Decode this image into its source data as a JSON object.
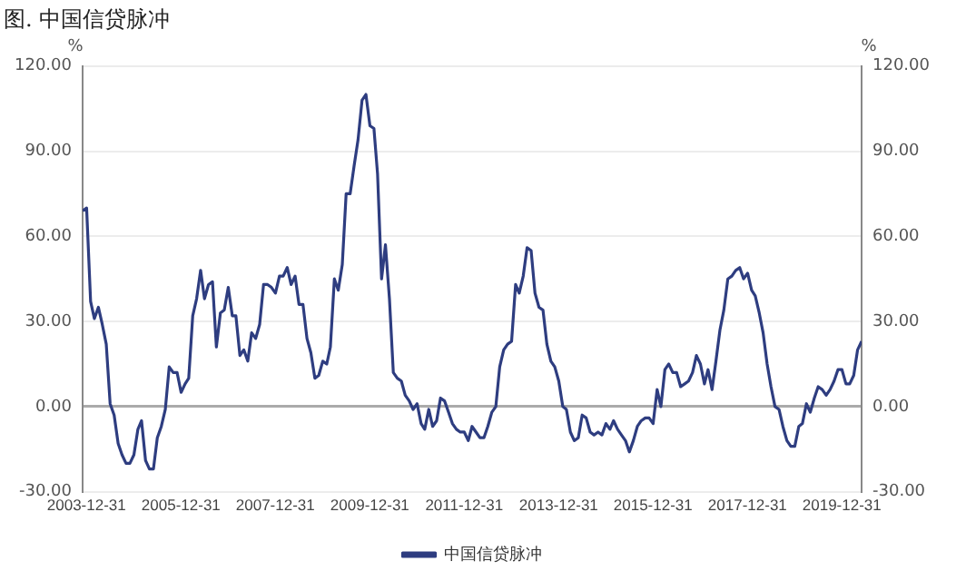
{
  "chart_data": {
    "type": "line",
    "title": "图. 中国信贷脉冲",
    "ylabel": "%",
    "y2label": "%",
    "x": [
      "2003-12",
      "2004-01",
      "2004-02",
      "2004-03",
      "2004-04",
      "2004-05",
      "2004-06",
      "2004-07",
      "2004-08",
      "2004-09",
      "2004-10",
      "2004-11",
      "2004-12",
      "2005-01",
      "2005-02",
      "2005-03",
      "2005-04",
      "2005-05",
      "2005-06",
      "2005-07",
      "2005-08",
      "2005-09",
      "2005-10",
      "2005-11",
      "2005-12",
      "2006-01",
      "2006-02",
      "2006-03",
      "2006-04",
      "2006-05",
      "2006-06",
      "2006-07",
      "2006-08",
      "2006-09",
      "2006-10",
      "2006-11",
      "2006-12",
      "2007-01",
      "2007-02",
      "2007-03",
      "2007-04",
      "2007-05",
      "2007-06",
      "2007-07",
      "2007-08",
      "2007-09",
      "2007-10",
      "2007-11",
      "2007-12",
      "2008-01",
      "2008-02",
      "2008-03",
      "2008-04",
      "2008-05",
      "2008-06",
      "2008-07",
      "2008-08",
      "2008-09",
      "2008-10",
      "2008-11",
      "2008-12",
      "2009-01",
      "2009-02",
      "2009-03",
      "2009-04",
      "2009-05",
      "2009-06",
      "2009-07",
      "2009-08",
      "2009-09",
      "2009-10",
      "2009-11",
      "2009-12",
      "2010-01",
      "2010-02",
      "2010-03",
      "2010-04",
      "2010-05",
      "2010-06",
      "2010-07",
      "2010-08",
      "2010-09",
      "2010-10",
      "2010-11",
      "2010-12",
      "2011-01",
      "2011-02",
      "2011-03",
      "2011-04",
      "2011-05",
      "2011-06",
      "2011-07",
      "2011-08",
      "2011-09",
      "2011-10",
      "2011-11",
      "2011-12",
      "2012-01",
      "2012-02",
      "2012-03",
      "2012-04",
      "2012-05",
      "2012-06",
      "2012-07",
      "2012-08",
      "2012-09",
      "2012-10",
      "2012-11",
      "2012-12",
      "2013-01",
      "2013-02",
      "2013-03",
      "2013-04",
      "2013-05",
      "2013-06",
      "2013-07",
      "2013-08",
      "2013-09",
      "2013-10",
      "2013-11",
      "2013-12",
      "2014-01",
      "2014-02",
      "2014-03",
      "2014-04",
      "2014-05",
      "2014-06",
      "2014-07",
      "2014-08",
      "2014-09",
      "2014-10",
      "2014-11",
      "2014-12",
      "2015-01",
      "2015-02",
      "2015-03",
      "2015-04",
      "2015-05",
      "2015-06",
      "2015-07",
      "2015-08",
      "2015-09",
      "2015-10",
      "2015-11",
      "2015-12",
      "2016-01",
      "2016-02",
      "2016-03",
      "2016-04",
      "2016-05",
      "2016-06",
      "2016-07",
      "2016-08",
      "2016-09",
      "2016-10",
      "2016-11",
      "2016-12",
      "2017-01",
      "2017-02",
      "2017-03",
      "2017-04",
      "2017-05",
      "2017-06",
      "2017-07",
      "2017-08",
      "2017-09",
      "2017-10",
      "2017-11",
      "2017-12",
      "2018-01",
      "2018-02",
      "2018-03",
      "2018-04",
      "2018-05",
      "2018-06",
      "2018-07",
      "2018-08",
      "2018-09",
      "2018-10",
      "2018-11",
      "2018-12",
      "2019-01",
      "2019-02",
      "2019-03",
      "2019-04",
      "2019-05",
      "2019-06",
      "2019-07",
      "2019-08",
      "2019-09",
      "2019-10",
      "2019-11",
      "2019-12",
      "2020-01",
      "2020-02",
      "2020-03",
      "2020-04",
      "2020-05",
      "2020-06"
    ],
    "series": [
      {
        "name": "中国信贷脉冲",
        "color": "#2e3d80",
        "values": [
          69,
          70,
          37,
          31,
          35,
          29,
          22,
          1,
          -3,
          -13,
          -17,
          -20,
          -20,
          -17,
          -8,
          -5,
          -19,
          -22,
          -22,
          -11,
          -7,
          -1,
          14,
          12,
          12,
          5,
          8,
          10,
          32,
          38,
          48,
          38,
          43,
          44,
          21,
          33,
          34,
          42,
          32,
          32,
          18,
          20,
          16,
          26,
          24,
          29,
          43,
          43,
          42,
          40,
          46,
          46,
          49,
          43,
          46,
          36,
          36,
          24,
          19,
          10,
          11,
          16,
          15,
          21,
          45,
          41,
          50,
          75,
          75,
          85,
          94,
          108,
          110,
          99,
          98,
          82,
          45,
          57,
          38,
          12,
          10,
          9,
          4,
          2,
          -1,
          1,
          -6,
          -8,
          -1,
          -7,
          -5,
          3,
          2,
          -2,
          -6,
          -8,
          -9,
          -9,
          -12,
          -7,
          -9,
          -11,
          -11,
          -7,
          -2,
          0,
          14,
          20,
          22,
          23,
          43,
          40,
          46,
          56,
          55,
          40,
          35,
          34,
          22,
          16,
          14,
          9,
          0,
          -1,
          -9,
          -12,
          -11,
          -3,
          -4,
          -9,
          -10,
          -9,
          -10,
          -6,
          -8,
          -5,
          -8,
          -10,
          -12,
          -16,
          -12,
          -7,
          -5,
          -4,
          -4,
          -6,
          6,
          0,
          13,
          15,
          12,
          12,
          7,
          8,
          9,
          12,
          18,
          15,
          8,
          13,
          6,
          16,
          27,
          34,
          45,
          46,
          48,
          49,
          45,
          47,
          41,
          39,
          33,
          26,
          15,
          7,
          0,
          -1,
          -7,
          -12,
          -14,
          -14,
          -7,
          -6,
          1,
          -2,
          3,
          7,
          6,
          4,
          6,
          9,
          13,
          13,
          8,
          8,
          11,
          20,
          23
        ]
      }
    ],
    "xlim": [
      "2003-12",
      "2020-06"
    ],
    "xticks": [
      "2003-12-31",
      "2005-12-31",
      "2007-12-31",
      "2009-12-31",
      "2011-12-31",
      "2013-12-31",
      "2015-12-31",
      "2017-12-31",
      "2019-12-31"
    ],
    "ylim": [
      -30,
      120
    ],
    "yticks": [
      {
        "value": -30,
        "label": "-30.00"
      },
      {
        "value": 0,
        "label": "0.00"
      },
      {
        "value": 30,
        "label": "30.00"
      },
      {
        "value": 60,
        "label": "60.00"
      },
      {
        "value": 90,
        "label": "90.00"
      },
      {
        "value": 120,
        "label": "120.00"
      }
    ],
    "y2lim": [
      -30,
      120
    ],
    "y2ticks": [
      {
        "value": -30,
        "label": "-30.00"
      },
      {
        "value": 0,
        "label": "0.00"
      },
      {
        "value": 30,
        "label": "30.00"
      },
      {
        "value": 60,
        "label": "60.00"
      },
      {
        "value": 90,
        "label": "90.00"
      },
      {
        "value": 120,
        "label": "120.00"
      }
    ],
    "grid": "y",
    "legend": "bottom",
    "marker": "none",
    "line_style": "solid"
  }
}
